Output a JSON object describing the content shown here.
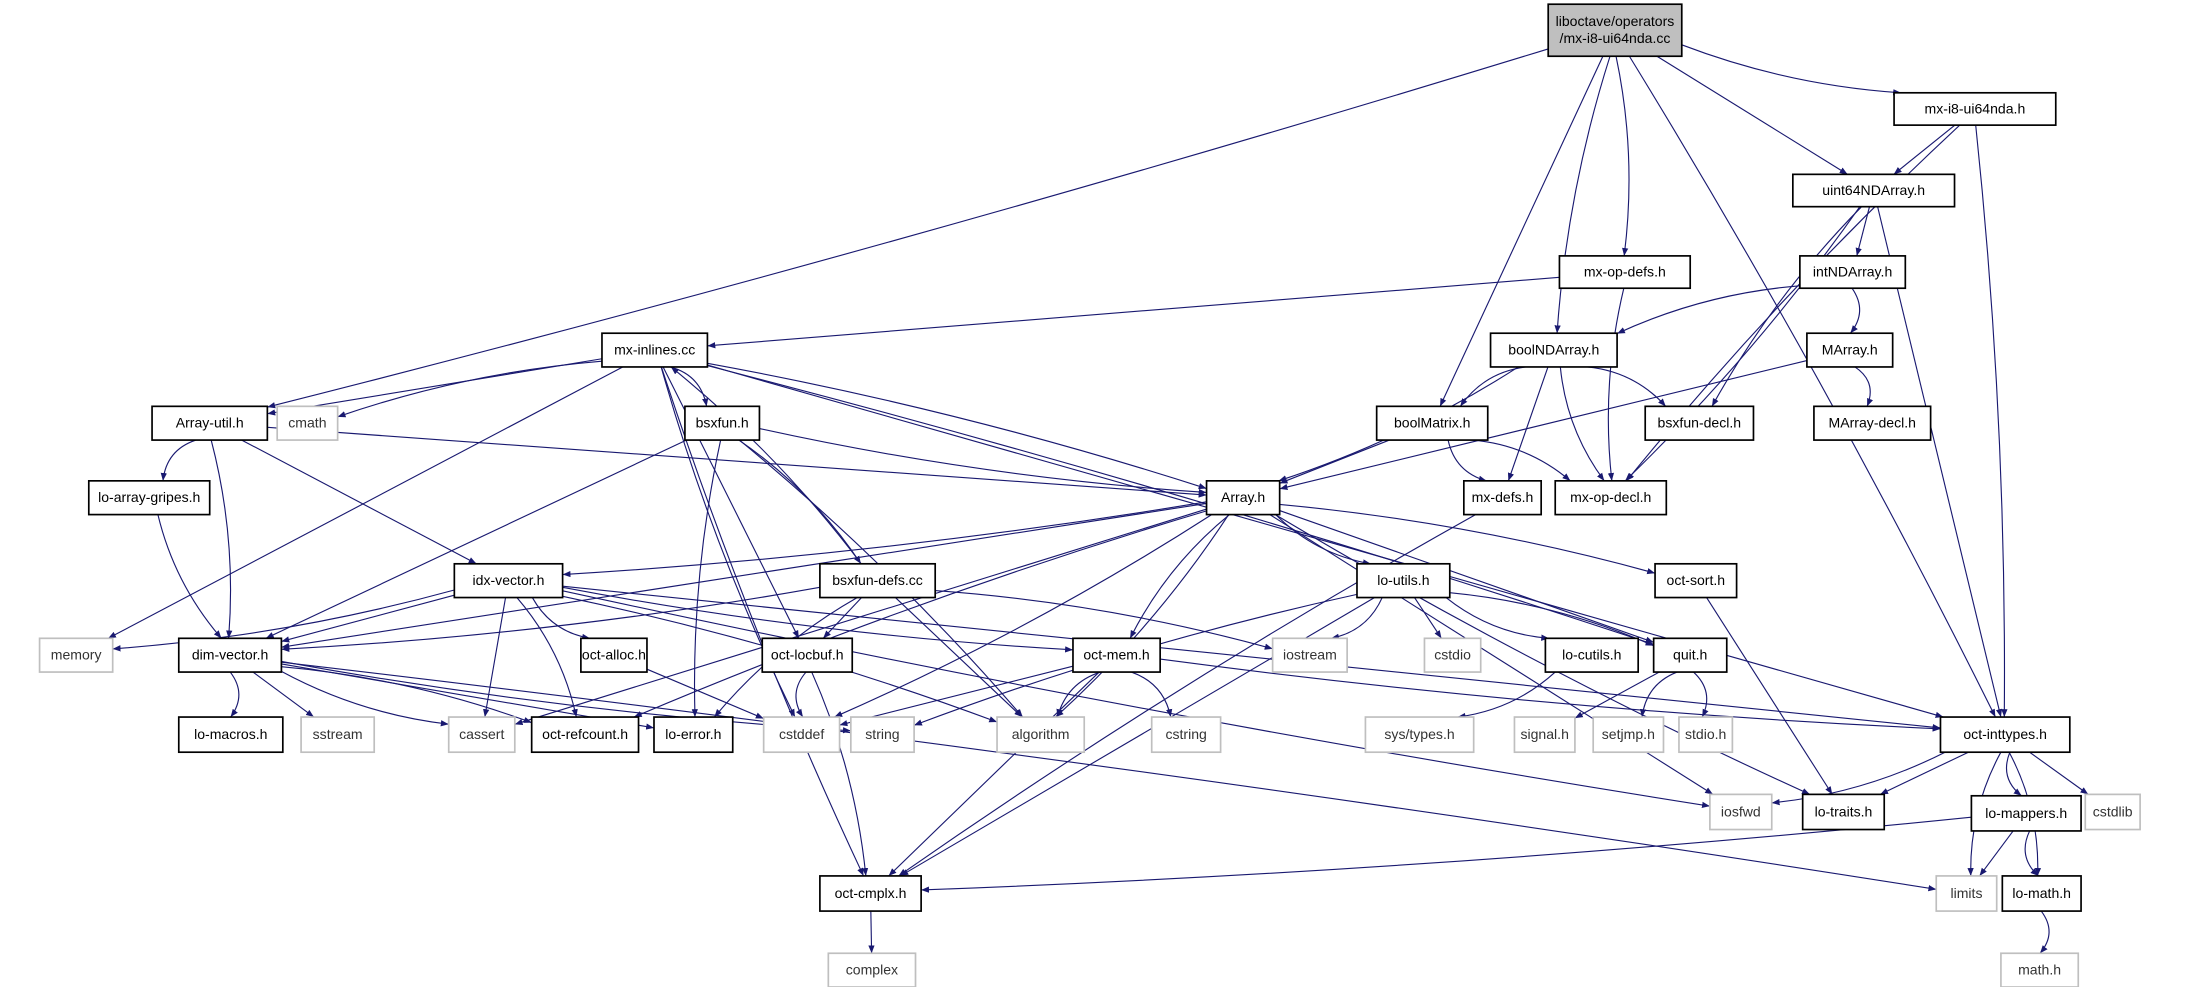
{
  "colors": {
    "edge": "#191970",
    "root_fill": "#bfbfbf",
    "external_border": "#bfbfbf",
    "node_border": "#000000"
  },
  "nodes": [
    {
      "id": "root",
      "label": [
        "liboctave/operators",
        "/mx-i8-ui64nda.cc"
      ],
      "kind": "root"
    },
    {
      "id": "mx-i8-ui64nda.h",
      "label": [
        "mx-i8-ui64nda.h"
      ],
      "kind": "normal"
    },
    {
      "id": "uint64NDArray.h",
      "label": [
        "uint64NDArray.h"
      ],
      "kind": "normal"
    },
    {
      "id": "mx-op-defs.h",
      "label": [
        "mx-op-defs.h"
      ],
      "kind": "normal"
    },
    {
      "id": "intNDArray.h",
      "label": [
        "intNDArray.h"
      ],
      "kind": "normal"
    },
    {
      "id": "mx-inlines.cc",
      "label": [
        "mx-inlines.cc"
      ],
      "kind": "normal"
    },
    {
      "id": "boolNDArray.h",
      "label": [
        "boolNDArray.h"
      ],
      "kind": "normal"
    },
    {
      "id": "MArray.h",
      "label": [
        "MArray.h"
      ],
      "kind": "normal"
    },
    {
      "id": "Array-util.h",
      "label": [
        "Array-util.h"
      ],
      "kind": "normal"
    },
    {
      "id": "cmath",
      "label": [
        "cmath"
      ],
      "kind": "ext"
    },
    {
      "id": "bsxfun.h",
      "label": [
        "bsxfun.h"
      ],
      "kind": "normal"
    },
    {
      "id": "boolMatrix.h",
      "label": [
        "boolMatrix.h"
      ],
      "kind": "normal"
    },
    {
      "id": "bsxfun-decl.h",
      "label": [
        "bsxfun-decl.h"
      ],
      "kind": "normal"
    },
    {
      "id": "MArray-decl.h",
      "label": [
        "MArray-decl.h"
      ],
      "kind": "normal"
    },
    {
      "id": "lo-array-gripes.h",
      "label": [
        "lo-array-gripes.h"
      ],
      "kind": "normal"
    },
    {
      "id": "Array.h",
      "label": [
        "Array.h"
      ],
      "kind": "normal"
    },
    {
      "id": "mx-defs.h",
      "label": [
        "mx-defs.h"
      ],
      "kind": "normal"
    },
    {
      "id": "mx-op-decl.h",
      "label": [
        "mx-op-decl.h"
      ],
      "kind": "normal"
    },
    {
      "id": "idx-vector.h",
      "label": [
        "idx-vector.h"
      ],
      "kind": "normal"
    },
    {
      "id": "bsxfun-defs.cc",
      "label": [
        "bsxfun-defs.cc"
      ],
      "kind": "normal"
    },
    {
      "id": "lo-utils.h",
      "label": [
        "lo-utils.h"
      ],
      "kind": "normal"
    },
    {
      "id": "oct-sort.h",
      "label": [
        "oct-sort.h"
      ],
      "kind": "normal"
    },
    {
      "id": "memory",
      "label": [
        "memory"
      ],
      "kind": "ext"
    },
    {
      "id": "dim-vector.h",
      "label": [
        "dim-vector.h"
      ],
      "kind": "normal"
    },
    {
      "id": "oct-alloc.h",
      "label": [
        "oct-alloc.h"
      ],
      "kind": "normal"
    },
    {
      "id": "oct-locbuf.h",
      "label": [
        "oct-locbuf.h"
      ],
      "kind": "normal"
    },
    {
      "id": "oct-mem.h",
      "label": [
        "oct-mem.h"
      ],
      "kind": "normal"
    },
    {
      "id": "iostream",
      "label": [
        "iostream"
      ],
      "kind": "ext"
    },
    {
      "id": "cstdio",
      "label": [
        "cstdio"
      ],
      "kind": "ext"
    },
    {
      "id": "lo-cutils.h",
      "label": [
        "lo-cutils.h"
      ],
      "kind": "normal"
    },
    {
      "id": "quit.h",
      "label": [
        "quit.h"
      ],
      "kind": "normal"
    },
    {
      "id": "lo-macros.h",
      "label": [
        "lo-macros.h"
      ],
      "kind": "normal"
    },
    {
      "id": "sstream",
      "label": [
        "sstream"
      ],
      "kind": "ext"
    },
    {
      "id": "cassert",
      "label": [
        "cassert"
      ],
      "kind": "ext"
    },
    {
      "id": "oct-refcount.h",
      "label": [
        "oct-refcount.h"
      ],
      "kind": "normal"
    },
    {
      "id": "lo-error.h",
      "label": [
        "lo-error.h"
      ],
      "kind": "normal"
    },
    {
      "id": "cstddef",
      "label": [
        "cstddef"
      ],
      "kind": "ext"
    },
    {
      "id": "string",
      "label": [
        "string"
      ],
      "kind": "ext"
    },
    {
      "id": "algorithm",
      "label": [
        "algorithm"
      ],
      "kind": "ext"
    },
    {
      "id": "cstring",
      "label": [
        "cstring"
      ],
      "kind": "ext"
    },
    {
      "id": "sys/types.h",
      "label": [
        "sys/types.h"
      ],
      "kind": "ext"
    },
    {
      "id": "signal.h",
      "label": [
        "signal.h"
      ],
      "kind": "ext"
    },
    {
      "id": "setjmp.h",
      "label": [
        "setjmp.h"
      ],
      "kind": "ext"
    },
    {
      "id": "stdio.h",
      "label": [
        "stdio.h"
      ],
      "kind": "ext"
    },
    {
      "id": "oct-inttypes.h",
      "label": [
        "oct-inttypes.h"
      ],
      "kind": "normal"
    },
    {
      "id": "iosfwd",
      "label": [
        "iosfwd"
      ],
      "kind": "ext"
    },
    {
      "id": "lo-traits.h",
      "label": [
        "lo-traits.h"
      ],
      "kind": "normal"
    },
    {
      "id": "lo-mappers.h",
      "label": [
        "lo-mappers.h"
      ],
      "kind": "normal"
    },
    {
      "id": "cstdlib",
      "label": [
        "cstdlib"
      ],
      "kind": "ext"
    },
    {
      "id": "oct-cmplx.h",
      "label": [
        "oct-cmplx.h"
      ],
      "kind": "normal"
    },
    {
      "id": "limits",
      "label": [
        "limits"
      ],
      "kind": "ext"
    },
    {
      "id": "lo-math.h",
      "label": [
        "lo-math.h"
      ],
      "kind": "normal"
    },
    {
      "id": "complex",
      "label": [
        "complex"
      ],
      "kind": "ext"
    },
    {
      "id": "math.h",
      "label": [
        "math.h"
      ],
      "kind": "ext"
    }
  ],
  "edges": [
    [
      "root",
      "Array-util.h"
    ],
    [
      "root",
      "boolMatrix.h"
    ],
    [
      "root",
      "boolNDArray.h"
    ],
    [
      "root",
      "mx-op-defs.h"
    ],
    [
      "root",
      "uint64NDArray.h"
    ],
    [
      "root",
      "mx-i8-ui64nda.h"
    ],
    [
      "root",
      "oct-inttypes.h"
    ],
    [
      "mx-i8-ui64nda.h",
      "uint64NDArray.h"
    ],
    [
      "mx-i8-ui64nda.h",
      "mx-op-decl.h"
    ],
    [
      "mx-i8-ui64nda.h",
      "oct-inttypes.h"
    ],
    [
      "uint64NDArray.h",
      "intNDArray.h"
    ],
    [
      "uint64NDArray.h",
      "bsxfun-decl.h"
    ],
    [
      "uint64NDArray.h",
      "mx-op-decl.h"
    ],
    [
      "uint64NDArray.h",
      "oct-inttypes.h"
    ],
    [
      "intNDArray.h",
      "boolNDArray.h"
    ],
    [
      "intNDArray.h",
      "MArray.h"
    ],
    [
      "mx-op-defs.h",
      "mx-inlines.cc"
    ],
    [
      "mx-op-defs.h",
      "mx-op-decl.h"
    ],
    [
      "MArray.h",
      "MArray-decl.h"
    ],
    [
      "MArray.h",
      "Array.h"
    ],
    [
      "boolNDArray.h",
      "boolMatrix.h"
    ],
    [
      "boolNDArray.h",
      "Array.h"
    ],
    [
      "boolNDArray.h",
      "mx-defs.h"
    ],
    [
      "boolNDArray.h",
      "mx-op-decl.h"
    ],
    [
      "boolNDArray.h",
      "bsxfun-decl.h"
    ],
    [
      "boolMatrix.h",
      "Array.h"
    ],
    [
      "boolMatrix.h",
      "mx-defs.h"
    ],
    [
      "boolMatrix.h",
      "mx-op-decl.h"
    ],
    [
      "mx-inlines.cc",
      "Array-util.h"
    ],
    [
      "mx-inlines.cc",
      "cmath"
    ],
    [
      "mx-inlines.cc",
      "bsxfun.h"
    ],
    [
      "mx-inlines.cc",
      "memory"
    ],
    [
      "mx-inlines.cc",
      "oct-cmplx.h"
    ],
    [
      "mx-inlines.cc",
      "Array.h"
    ],
    [
      "mx-inlines.cc",
      "oct-locbuf.h"
    ],
    [
      "mx-inlines.cc",
      "cstddef"
    ],
    [
      "mx-inlines.cc",
      "quit.h"
    ],
    [
      "mx-inlines.cc",
      "oct-inttypes.h"
    ],
    [
      "bsxfun-defs.cc",
      "mx-inlines.cc"
    ],
    [
      "bsxfun-defs.cc",
      "dim-vector.h"
    ],
    [
      "bsxfun-defs.cc",
      "oct-locbuf.h"
    ],
    [
      "bsxfun-defs.cc",
      "lo-error.h"
    ],
    [
      "bsxfun-defs.cc",
      "iostream"
    ],
    [
      "bsxfun-defs.cc",
      "algorithm"
    ],
    [
      "bsxfun.h",
      "Array.h"
    ],
    [
      "bsxfun.h",
      "bsxfun-defs.cc"
    ],
    [
      "bsxfun.h",
      "dim-vector.h"
    ],
    [
      "bsxfun.h",
      "lo-error.h"
    ],
    [
      "bsxfun.h",
      "algorithm"
    ],
    [
      "Array-util.h",
      "Array.h"
    ],
    [
      "Array-util.h",
      "lo-array-gripes.h"
    ],
    [
      "Array-util.h",
      "dim-vector.h"
    ],
    [
      "Array-util.h",
      "idx-vector.h"
    ],
    [
      "lo-array-gripes.h",
      "dim-vector.h"
    ],
    [
      "Array.h",
      "idx-vector.h"
    ],
    [
      "Array.h",
      "dim-vector.h"
    ],
    [
      "Array.h",
      "lo-utils.h"
    ],
    [
      "Array.h",
      "oct-sort.h"
    ],
    [
      "Array.h",
      "quit.h"
    ],
    [
      "Array.h",
      "oct-mem.h"
    ],
    [
      "Array.h",
      "cstddef"
    ],
    [
      "Array.h",
      "cassert"
    ],
    [
      "Array.h",
      "oct-refcount.h"
    ],
    [
      "Array.h",
      "algorithm"
    ],
    [
      "Array.h",
      "iosfwd"
    ],
    [
      "Array.h",
      "lo-traits.h"
    ],
    [
      "idx-vector.h",
      "memory"
    ],
    [
      "idx-vector.h",
      "dim-vector.h"
    ],
    [
      "idx-vector.h",
      "oct-alloc.h"
    ],
    [
      "idx-vector.h",
      "oct-refcount.h"
    ],
    [
      "idx-vector.h",
      "cassert"
    ],
    [
      "idx-vector.h",
      "oct-mem.h"
    ],
    [
      "idx-vector.h",
      "algorithm"
    ],
    [
      "idx-vector.h",
      "oct-inttypes.h"
    ],
    [
      "idx-vector.h",
      "iosfwd"
    ],
    [
      "dim-vector.h",
      "lo-macros.h"
    ],
    [
      "dim-vector.h",
      "sstream"
    ],
    [
      "dim-vector.h",
      "cassert"
    ],
    [
      "dim-vector.h",
      "oct-refcount.h"
    ],
    [
      "dim-vector.h",
      "lo-error.h"
    ],
    [
      "dim-vector.h",
      "string"
    ],
    [
      "dim-vector.h",
      "limits"
    ],
    [
      "oct-alloc.h",
      "cstddef"
    ],
    [
      "oct-locbuf.h",
      "cstddef"
    ],
    [
      "oct-locbuf.h",
      "oct-cmplx.h"
    ],
    [
      "oct-mem.h",
      "cstddef"
    ],
    [
      "oct-mem.h",
      "algorithm"
    ],
    [
      "oct-mem.h",
      "cstring"
    ],
    [
      "oct-mem.h",
      "oct-cmplx.h"
    ],
    [
      "oct-mem.h",
      "oct-inttypes.h"
    ],
    [
      "lo-utils.h",
      "iostream"
    ],
    [
      "lo-utils.h",
      "cstdio"
    ],
    [
      "lo-utils.h",
      "lo-cutils.h"
    ],
    [
      "lo-utils.h",
      "quit.h"
    ],
    [
      "lo-utils.h",
      "oct-cmplx.h"
    ],
    [
      "lo-utils.h",
      "string"
    ],
    [
      "lo-cutils.h",
      "sys/types.h"
    ],
    [
      "quit.h",
      "signal.h"
    ],
    [
      "quit.h",
      "setjmp.h"
    ],
    [
      "quit.h",
      "stdio.h"
    ],
    [
      "oct-sort.h",
      "lo-traits.h"
    ],
    [
      "mx-defs.h",
      "oct-cmplx.h"
    ],
    [
      "oct-inttypes.h",
      "iosfwd"
    ],
    [
      "oct-inttypes.h",
      "lo-traits.h"
    ],
    [
      "oct-inttypes.h",
      "lo-mappers.h"
    ],
    [
      "oct-inttypes.h",
      "lo-math.h"
    ],
    [
      "oct-inttypes.h",
      "cstdlib"
    ],
    [
      "oct-inttypes.h",
      "limits"
    ],
    [
      "lo-mappers.h",
      "oct-cmplx.h"
    ],
    [
      "lo-mappers.h",
      "limits"
    ],
    [
      "lo-mappers.h",
      "lo-math.h"
    ],
    [
      "lo-math.h",
      "math.h"
    ],
    [
      "oct-cmplx.h",
      "complex"
    ]
  ]
}
